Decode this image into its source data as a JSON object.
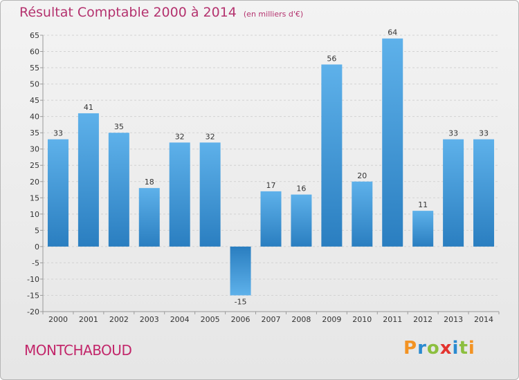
{
  "chart_data": {
    "type": "bar",
    "title": "Résultat Comptable 2000 à 2014",
    "subtitle": "(en milliers d'€)",
    "categories": [
      "2000",
      "2001",
      "2002",
      "2003",
      "2004",
      "2005",
      "2006",
      "2007",
      "2008",
      "2009",
      "2010",
      "2011",
      "2012",
      "2013",
      "2014"
    ],
    "values": [
      33,
      41,
      35,
      18,
      32,
      32,
      -15,
      17,
      16,
      56,
      20,
      64,
      11,
      33,
      33
    ],
    "yticks": [
      65,
      60,
      55,
      50,
      45,
      40,
      35,
      30,
      25,
      20,
      15,
      10,
      5,
      0,
      -5,
      -10,
      -15,
      -20
    ],
    "ylim": [
      -20,
      65
    ],
    "xlabel": "",
    "ylabel": "",
    "grid": true,
    "colors": {
      "bar_top": "#5eb1ea",
      "bar_bottom": "#2a7ec0",
      "title": "#b4326e",
      "label": "#333333"
    }
  },
  "location": "MONTCHABOUD",
  "brand": {
    "name": "Proxiti"
  }
}
